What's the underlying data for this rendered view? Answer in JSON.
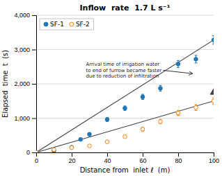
{
  "chart_data": {
    "type": "scatter",
    "title": "Inflow  rate  1.7 L s⁻¹",
    "xlabel": "Distance from  inlet ℓ  (m)",
    "ylabel": "Elapsed  time  t  (s)",
    "xlim": [
      0,
      100
    ],
    "ylim": [
      0,
      4000
    ],
    "xticks": [
      0,
      20,
      40,
      60,
      80,
      100
    ],
    "yticks": [
      0,
      {
        "value": 1000,
        "label": "1,000"
      },
      {
        "value": 2000,
        "label": "2,000"
      },
      {
        "value": 3000,
        "label": "3,000"
      },
      {
        "value": 4000,
        "label": "4,000"
      }
    ],
    "grid": "y",
    "legend": "upper-left",
    "series": [
      {
        "type": "line",
        "x": [
          0,
          100
        ],
        "values": [
          0,
          3280
        ]
      },
      {
        "type": "line",
        "x": [
          0,
          100
        ],
        "values": [
          0,
          1500
        ]
      },
      {
        "name": "SF-1",
        "type": "scatter",
        "marker": "circle",
        "x": [
          0,
          10,
          20,
          25,
          30,
          40,
          50,
          60,
          70,
          80,
          90,
          100
        ],
        "values": [
          0,
          50,
          150,
          380,
          530,
          960,
          1290,
          1620,
          1870,
          2580,
          2720,
          3280
        ],
        "errors": [
          0,
          15,
          25,
          40,
          45,
          55,
          65,
          75,
          85,
          100,
          110,
          125
        ]
      },
      {
        "name": "SF-2",
        "type": "scatter",
        "marker": "open-circle",
        "x": [
          0,
          10,
          20,
          30,
          40,
          50,
          60,
          70,
          80,
          90,
          100
        ],
        "values": [
          0,
          80,
          140,
          190,
          310,
          460,
          680,
          900,
          1150,
          1310,
          1500
        ],
        "errors": [
          0,
          15,
          20,
          25,
          35,
          45,
          55,
          65,
          75,
          85,
          95
        ]
      },
      {
        "type": "scatter",
        "marker": "triangle",
        "x": [
          100
        ],
        "values": [
          1750
        ]
      }
    ],
    "annotations": [
      {
        "text": "Arrival time of irrigation water\nto end of furrow became faster\ndue to reduction of infiltration",
        "x": 28,
        "y": 2650,
        "arrow_x": 88,
        "arrow_y": 2300
      }
    ]
  }
}
